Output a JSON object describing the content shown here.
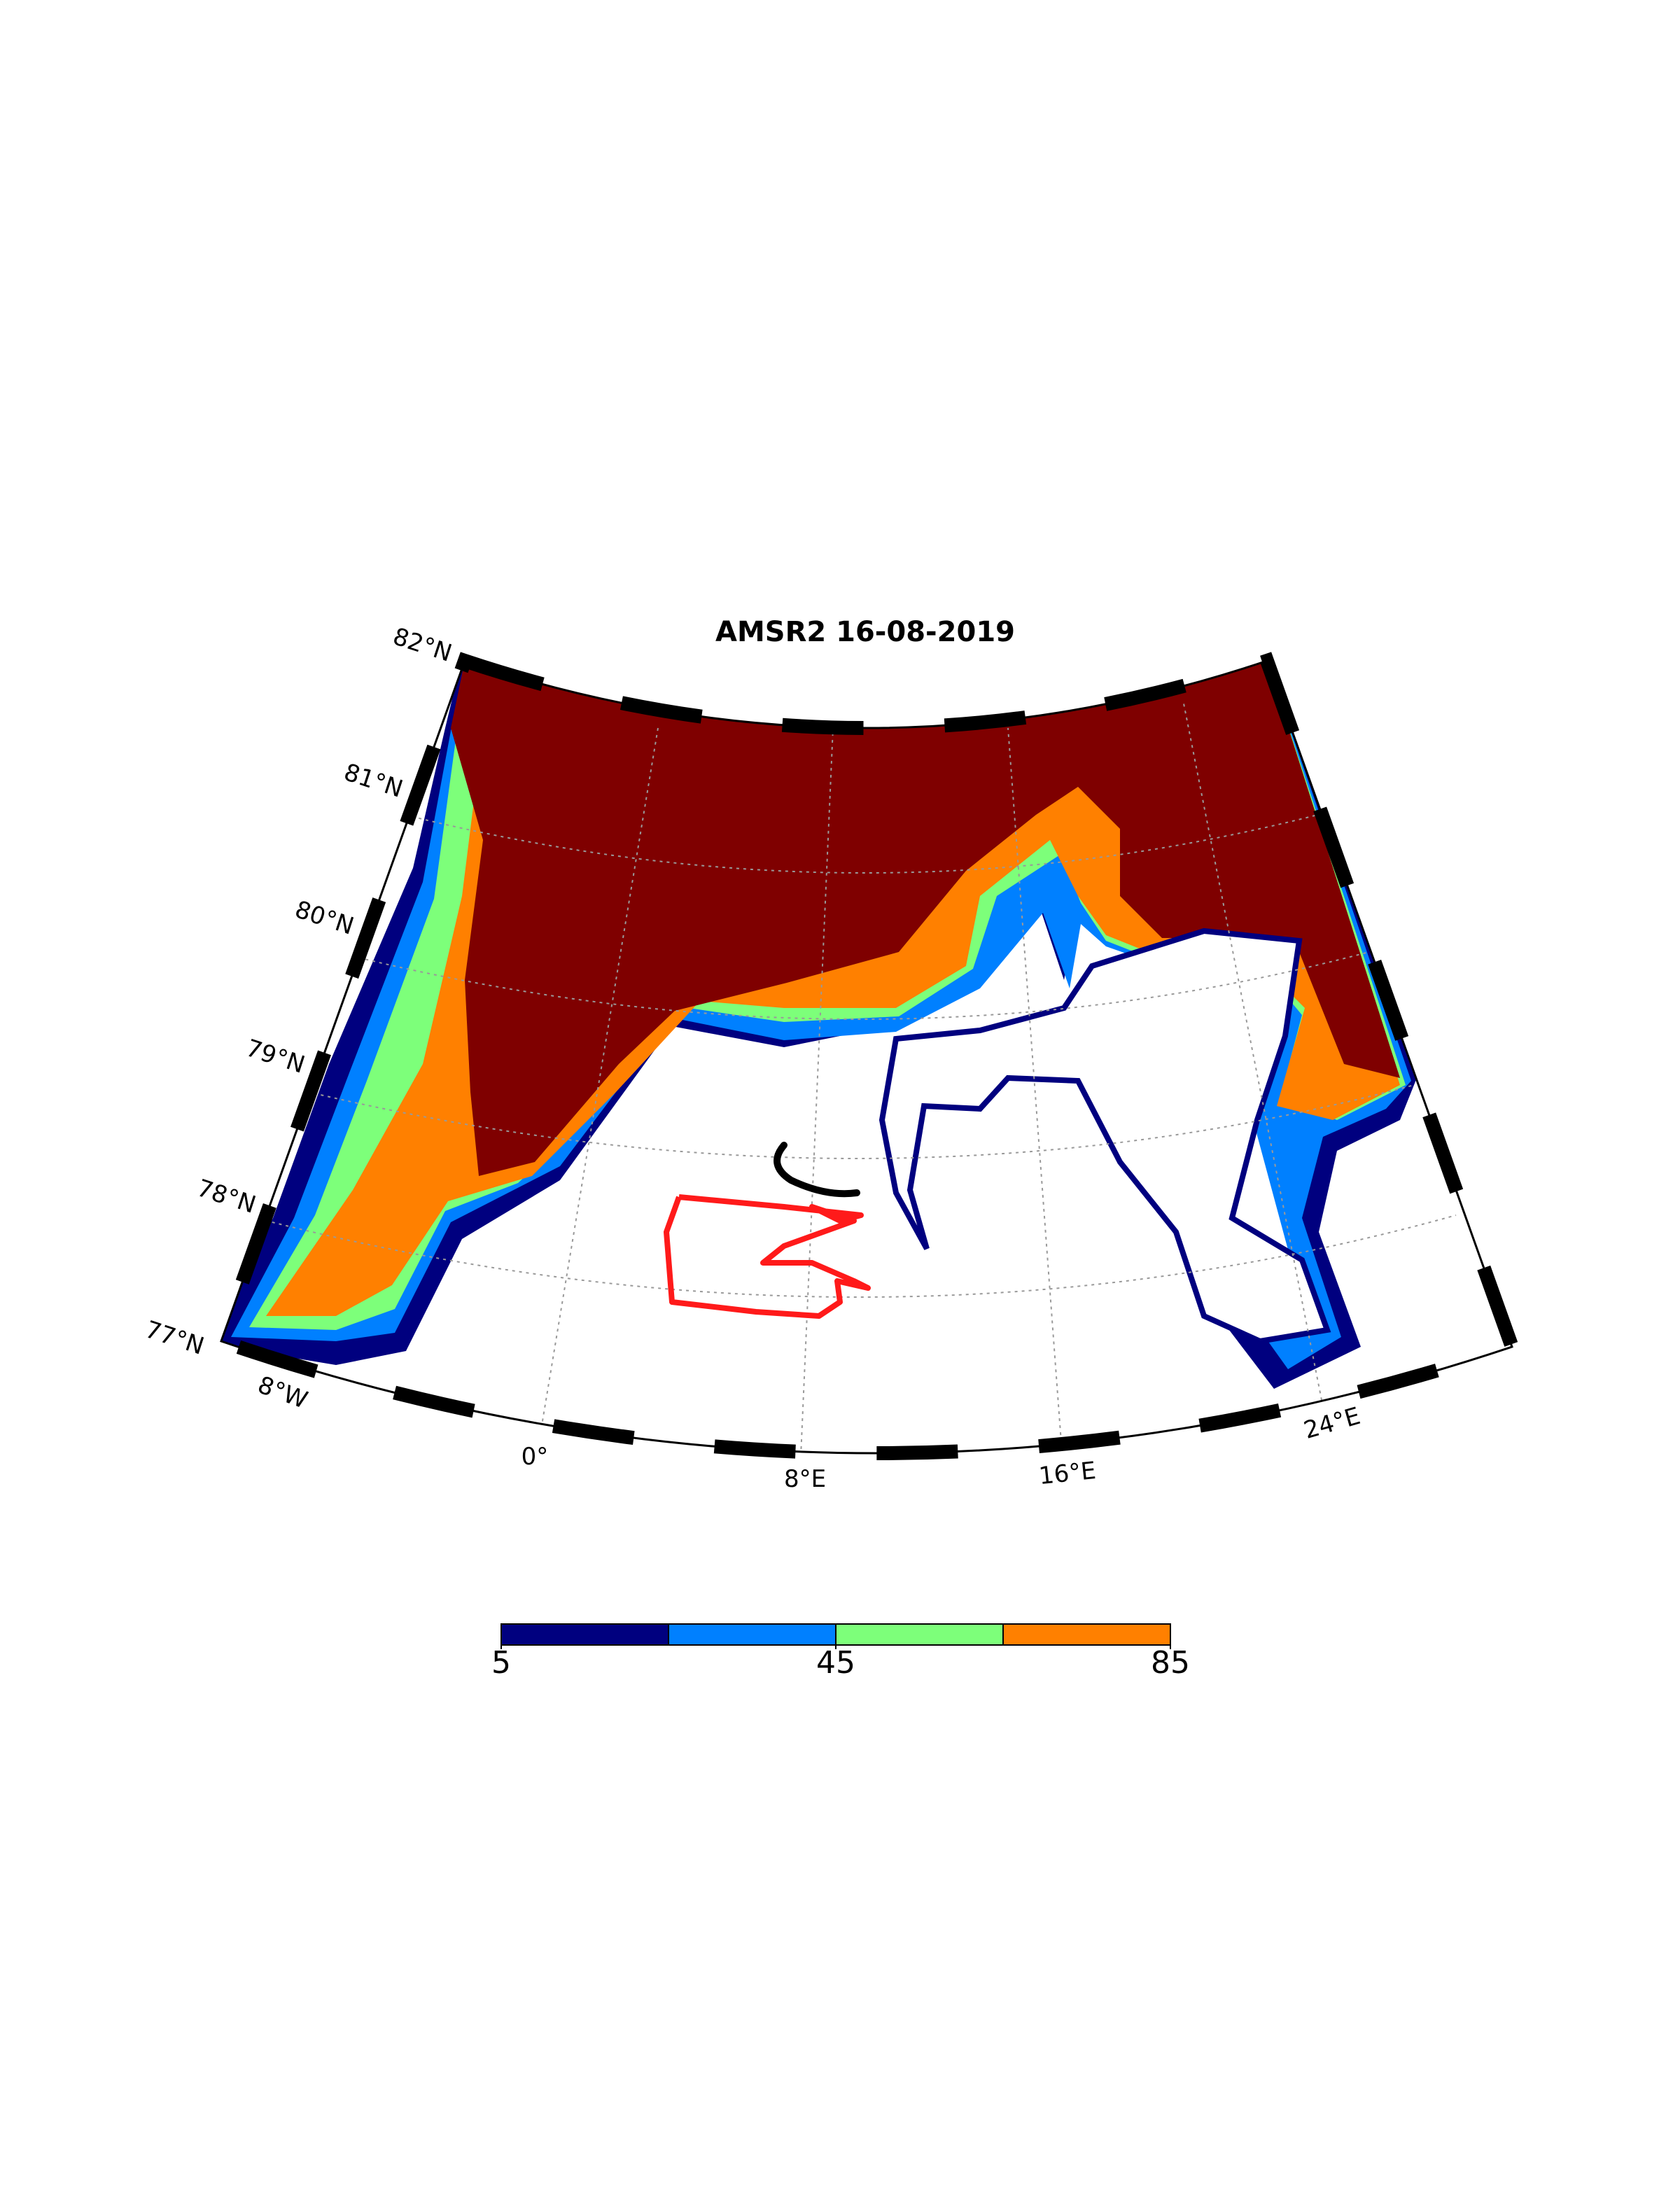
{
  "title": "AMSR2 16-08-2019",
  "map": {
    "lat_labels": [
      "82°N",
      "81°N",
      "80°N",
      "79°N",
      "78°N",
      "77°N"
    ],
    "lon_labels": [
      "8°W",
      "0°",
      "8°E",
      "16°E",
      "24°E"
    ]
  },
  "colorbar": {
    "levels": [
      5,
      25,
      45,
      65,
      85
    ],
    "colors": [
      "#00007f",
      "#0080ff",
      "#7dff7a",
      "#ff8000"
    ],
    "ticks": [
      5,
      45,
      85
    ]
  }
}
